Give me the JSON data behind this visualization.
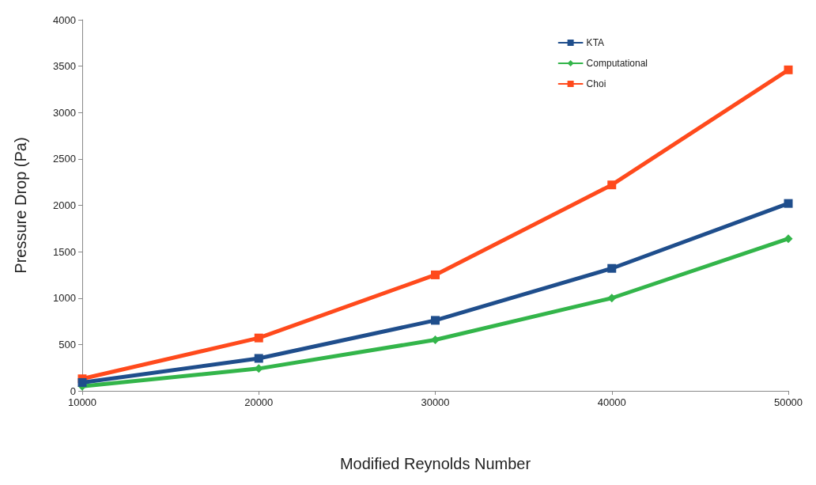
{
  "chart_data": {
    "type": "line",
    "xlabel": "Modified Reynolds Number",
    "ylabel": "Pressure Drop (Pa)",
    "x": [
      10000,
      20000,
      30000,
      40000,
      50000
    ],
    "series": [
      {
        "name": "KTA",
        "color": "#1f4e8c",
        "marker": "square",
        "values": [
          90,
          350,
          760,
          1320,
          2020
        ]
      },
      {
        "name": "Computational",
        "color": "#33b54a",
        "marker": "diamond",
        "values": [
          50,
          240,
          550,
          1000,
          1640
        ]
      },
      {
        "name": "Choi",
        "color": "#ff4a1c",
        "marker": "square",
        "values": [
          130,
          570,
          1250,
          2220,
          3460
        ]
      }
    ],
    "xlim": [
      10000,
      50000
    ],
    "xticks": [
      10000,
      20000,
      30000,
      40000,
      50000
    ],
    "ylim": [
      0,
      4000
    ],
    "yticks": [
      0,
      500,
      1000,
      1500,
      2000,
      2500,
      3000,
      3500,
      4000
    ],
    "grid": false,
    "legend": "top right",
    "line_style": "solid"
  }
}
